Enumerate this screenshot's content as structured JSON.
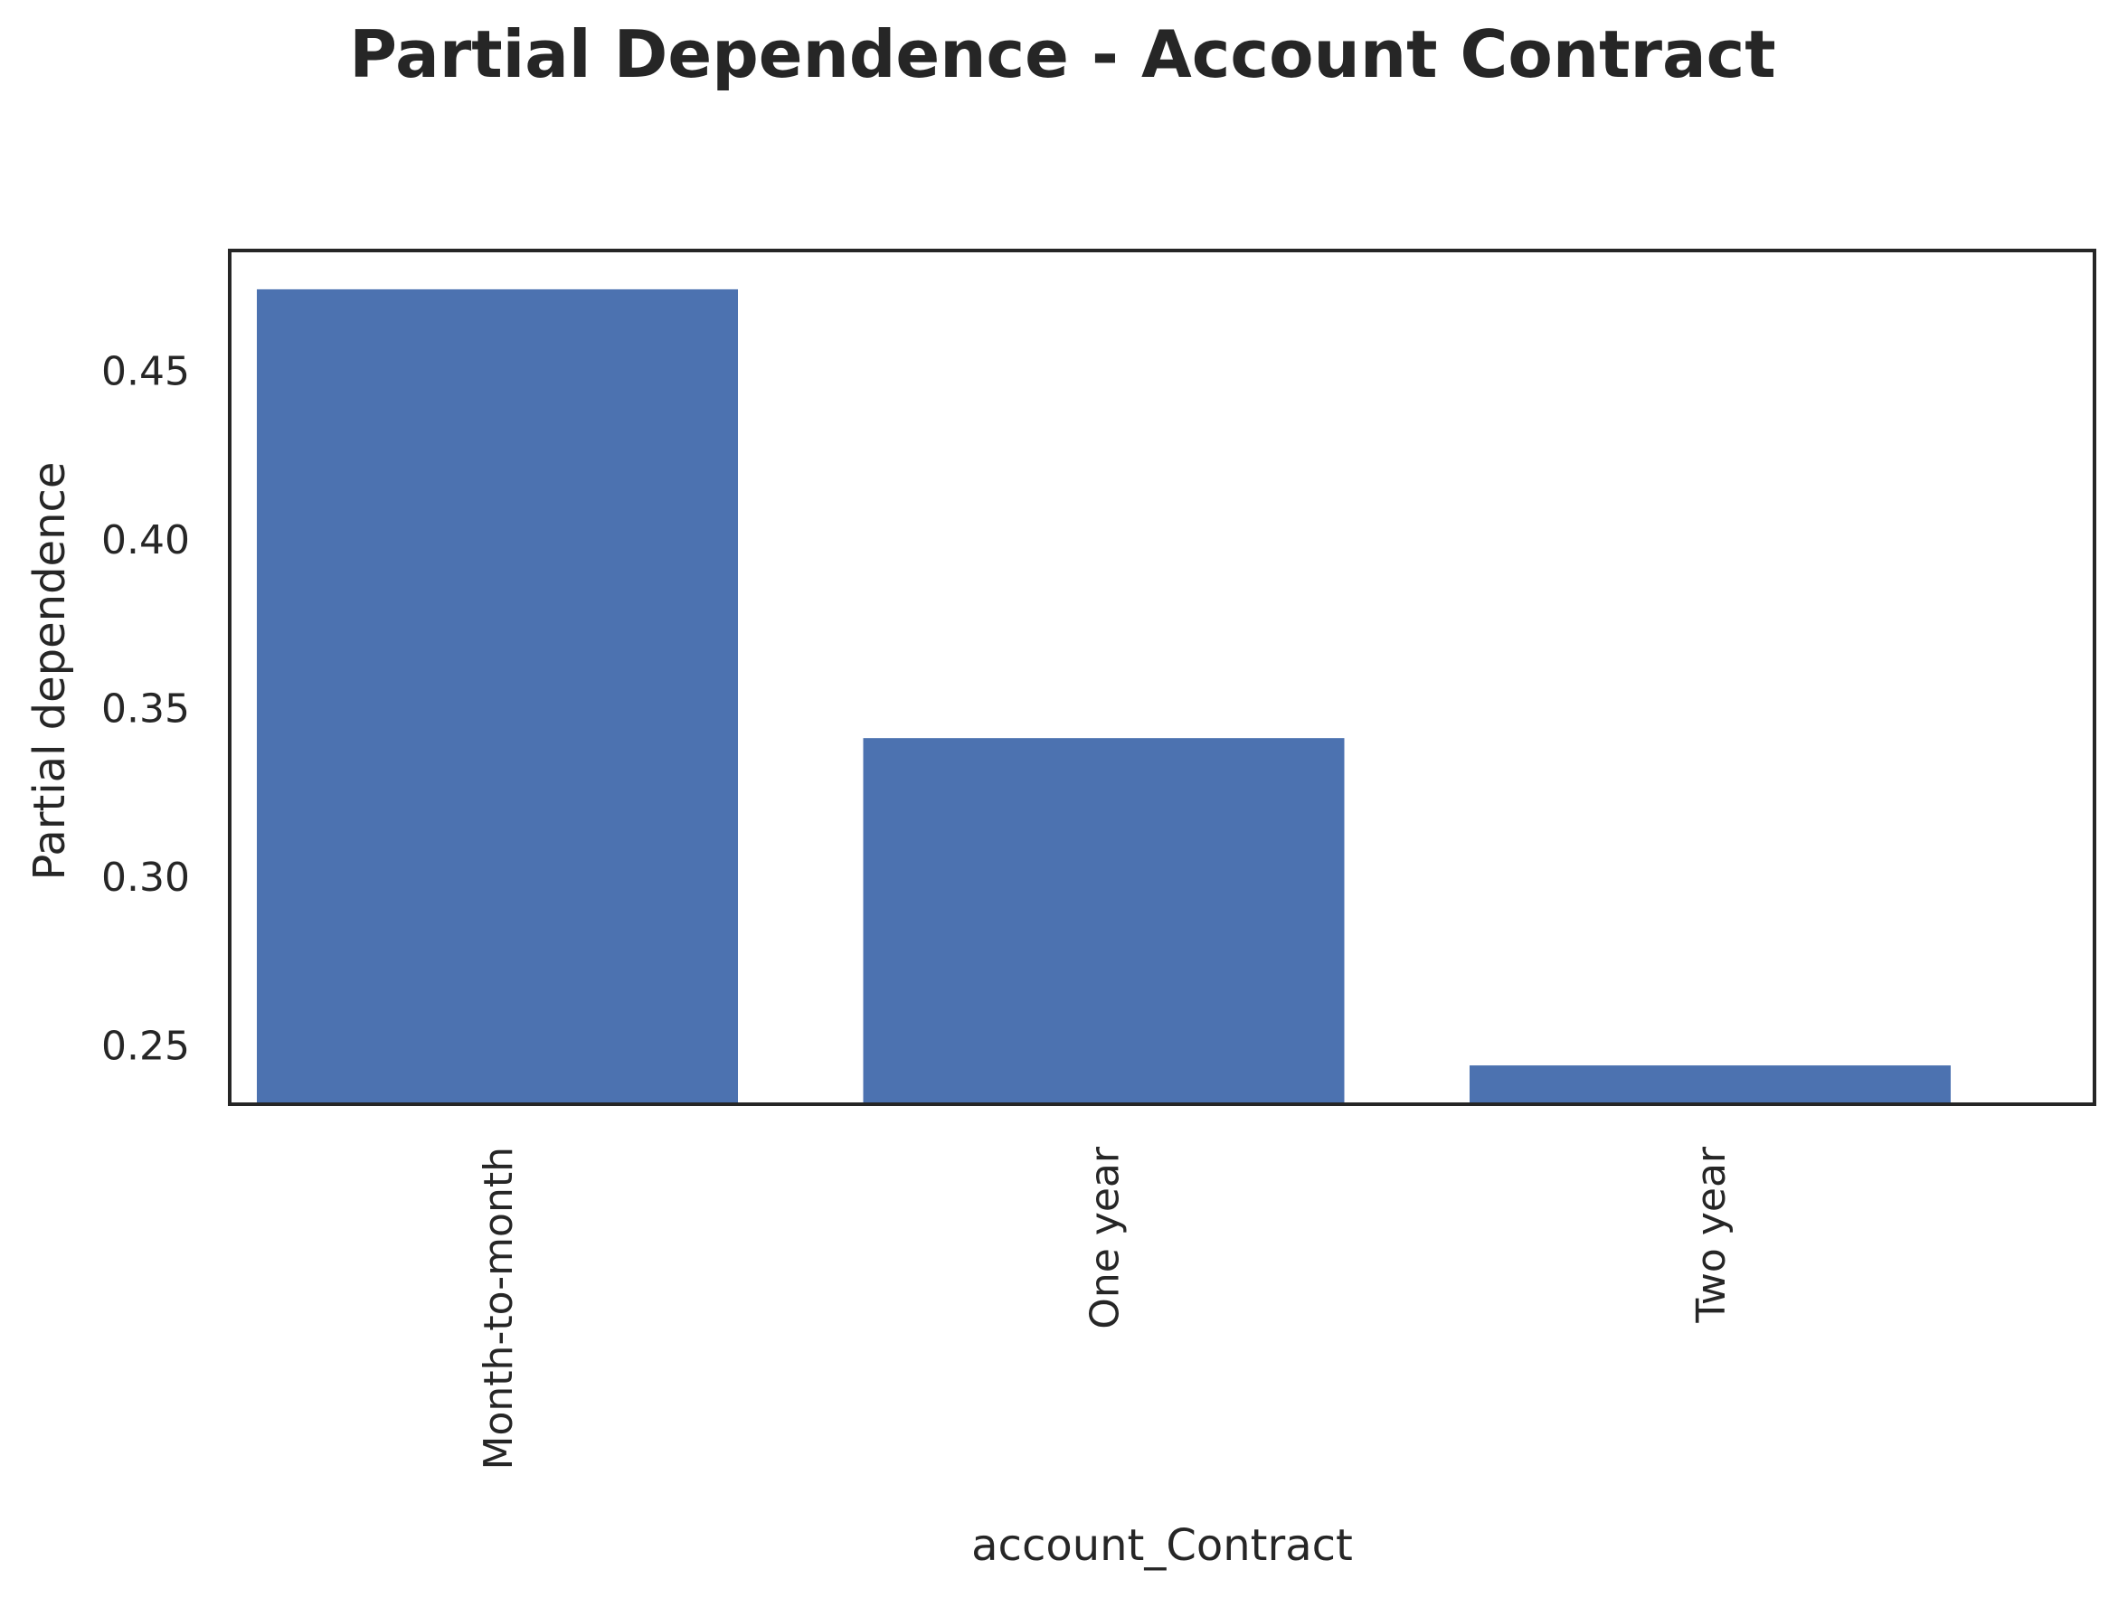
{
  "chart_data": {
    "type": "bar",
    "title": "Partial Dependence - Account Contract",
    "xlabel": "account_Contract",
    "ylabel": "Partial dependence",
    "categories": [
      "Month-to-month",
      "One year",
      "Two year"
    ],
    "values": [
      0.474,
      0.341,
      0.244
    ],
    "ylim": [
      0.2325,
      0.4855
    ],
    "yticks": [
      0.25,
      0.3,
      0.35,
      0.4,
      0.45
    ],
    "ytick_labels": [
      "0.25",
      "0.30",
      "0.35",
      "0.40",
      "0.45"
    ],
    "grid": false,
    "legend": "none",
    "colors": {
      "bar": "#4c72b0",
      "axis": "#262626",
      "text": "#262626"
    }
  }
}
